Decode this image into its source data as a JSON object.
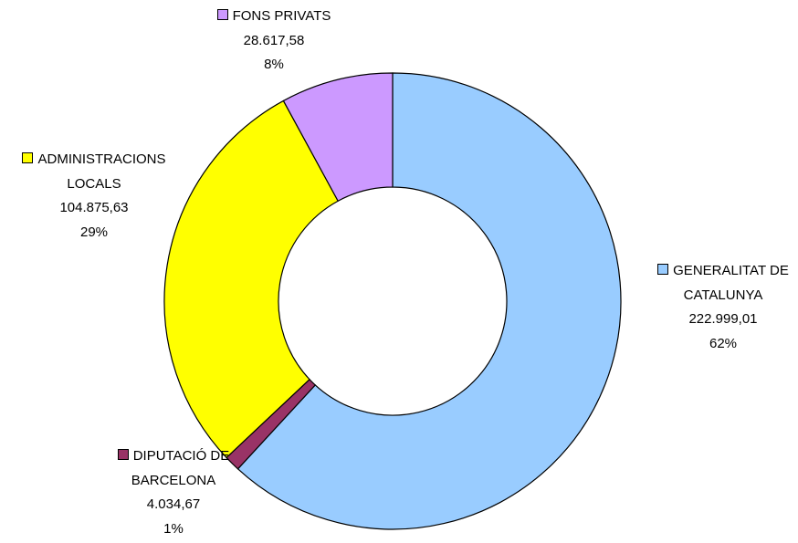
{
  "chart_data": {
    "type": "donut",
    "categories": [
      "GENERALITAT DE CATALUNYA",
      "DIPUTACIÓ DE BARCELONA",
      "ADMINISTRACIONS LOCALS",
      "FONS PRIVATS"
    ],
    "values": [
      222999.01,
      4034.67,
      104875.63,
      28617.58
    ],
    "value_labels": [
      "222.999,01",
      "4.034,67",
      "104.875,63",
      "28.617,58"
    ],
    "percentages": [
      {
        "value": 62,
        "label": "62%"
      },
      {
        "value": 1,
        "label": "1%"
      },
      {
        "value": 29,
        "label": "29%"
      },
      {
        "value": 8,
        "label": "8%"
      }
    ],
    "colors": [
      "#99ccff",
      "#993366",
      "#ffff00",
      "#cc99ff"
    ]
  }
}
